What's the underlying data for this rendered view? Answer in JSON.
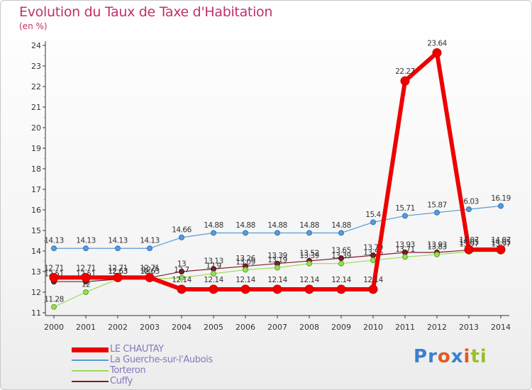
{
  "title": "Evolution du Taux de Taxe d'Habitation",
  "unit": "(en %)",
  "logo": {
    "letters": [
      {
        "ch": "P",
        "color": "#3a7fd0"
      },
      {
        "ch": "r",
        "color": "#3a7fd0"
      },
      {
        "ch": "o",
        "color": "#e05a20"
      },
      {
        "ch": "x",
        "color": "#3a7fd0"
      },
      {
        "ch": "i",
        "color": "#e05a20"
      },
      {
        "ch": "t",
        "color": "#9abf2a"
      },
      {
        "ch": "i",
        "color": "#9abf2a"
      }
    ]
  },
  "chart_data": {
    "type": "line",
    "title": "Evolution du Taux de Taxe d'Habitation",
    "ylabel": "(en %)",
    "xlabel": "",
    "ylim": [
      11,
      24
    ],
    "yticks": [
      11,
      12,
      13,
      14,
      15,
      16,
      17,
      18,
      19,
      20,
      21,
      22,
      23,
      24
    ],
    "grid": false,
    "legend_position": "bottom-left",
    "categories": [
      "2000",
      "2001",
      "2002",
      "2003",
      "2004",
      "2005",
      "2006",
      "2007",
      "2008",
      "2009",
      "2010",
      "2011",
      "2012",
      "2013",
      "2014"
    ],
    "series": [
      {
        "name": "Cuffy",
        "color": "#7a1e2a",
        "values": [
          12.51,
          12.51,
          12.63,
          12.7,
          13.0,
          13.13,
          13.26,
          13.39,
          13.52,
          13.65,
          13.79,
          13.93,
          13.93,
          14.05,
          14.05
        ],
        "labels": [
          "12.51",
          "12.51",
          "12.63",
          "12.7",
          "13",
          "13.13",
          "13.26",
          "13.39",
          "13.52",
          "13.65",
          "13.79",
          "13.93",
          "13.93",
          "14.05",
          "14.05"
        ]
      },
      {
        "name": "Torteron",
        "color": "#99dd55",
        "values": [
          11.28,
          12.0,
          12.63,
          12.63,
          12.7,
          12.9,
          13.09,
          13.19,
          13.39,
          13.39,
          13.55,
          13.71,
          13.83,
          13.97,
          13.97
        ],
        "labels": [
          "11.28",
          "12",
          "12.63",
          "12.63",
          "12.7",
          "12.9",
          "13.09",
          "13.19",
          "13.39",
          "13.39",
          "13.55",
          "13.71",
          "13.83",
          "13.97",
          "13.97"
        ]
      },
      {
        "name": "La Guerche-sur-l'Aubois",
        "color": "#5b9bd5",
        "values": [
          14.13,
          14.13,
          14.13,
          14.13,
          14.66,
          14.88,
          14.88,
          14.88,
          14.88,
          14.88,
          15.4,
          15.71,
          15.87,
          16.03,
          16.19
        ],
        "labels": [
          "14.13",
          "14.13",
          "14.13",
          "14.13",
          "14.66",
          "14.88",
          "14.88",
          "14.88",
          "14.88",
          "14.88",
          "15.4",
          "15.71",
          "15.87",
          "16.03",
          "16.19"
        ]
      },
      {
        "name": "LE CHAUTAY",
        "color": "#ee0000",
        "values": [
          12.71,
          12.71,
          12.71,
          12.71,
          12.14,
          12.14,
          12.14,
          12.14,
          12.14,
          12.14,
          12.14,
          22.27,
          23.64,
          14.07,
          14.07
        ],
        "labels": [
          "12.71",
          "12.71",
          "12.71",
          "12.71",
          "12.14",
          "12.14",
          "12.14",
          "12.14",
          "12.14",
          "12.14",
          "12.14",
          "22.27",
          "23.64",
          "14.07",
          "14.07"
        ]
      }
    ],
    "legend": [
      "LE CHAUTAY",
      "La Guerche-sur-l'Aubois",
      "Torteron",
      "Cuffy"
    ]
  }
}
